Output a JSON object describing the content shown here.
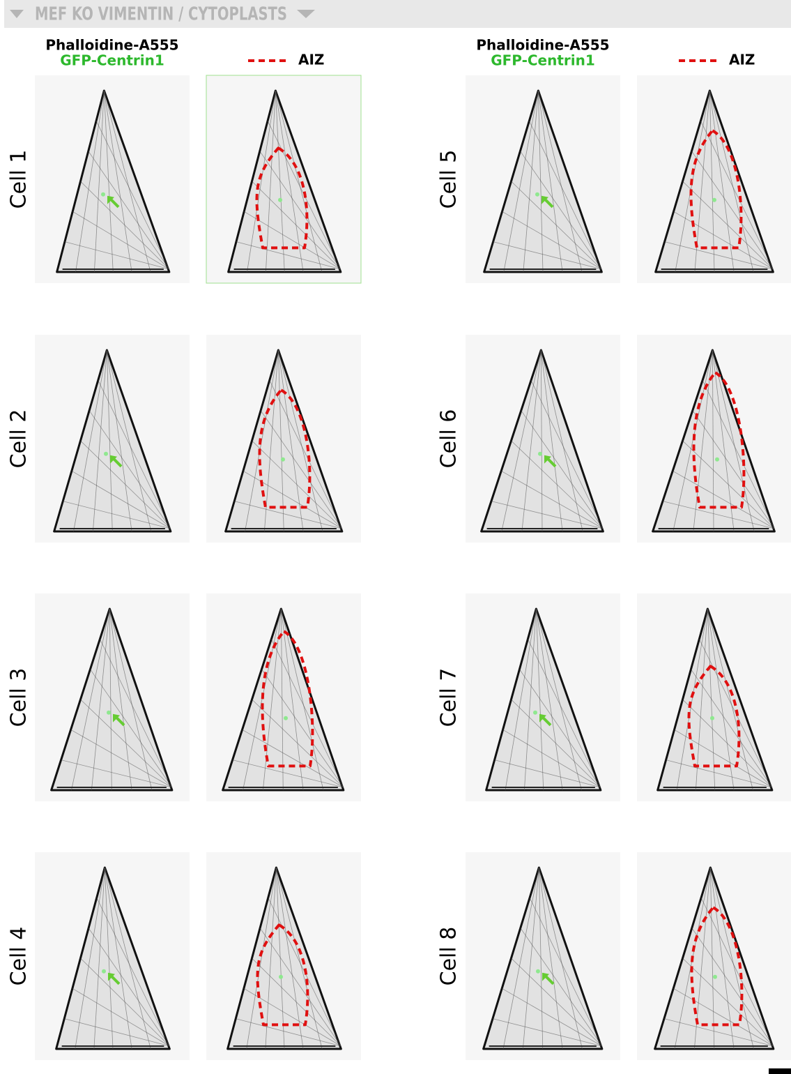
{
  "header": {
    "title": "MEF KO VIMENTIN / CYTOPLASTS"
  },
  "column_headers": [
    {
      "stain_line1": "Phalloidine-A555",
      "stain_line2": "GFP-Centrin1",
      "legend": "AIZ"
    },
    {
      "stain_line1": "Phalloidine-A555",
      "stain_line2": "GFP-Centrin1",
      "legend": "AIZ"
    }
  ],
  "cells": [
    {
      "label": "Cell 1"
    },
    {
      "label": "Cell 2"
    },
    {
      "label": "Cell 3"
    },
    {
      "label": "Cell 4"
    },
    {
      "label": "Cell 5"
    },
    {
      "label": "Cell 6"
    },
    {
      "label": "Cell 7"
    },
    {
      "label": "Cell 8"
    }
  ]
}
